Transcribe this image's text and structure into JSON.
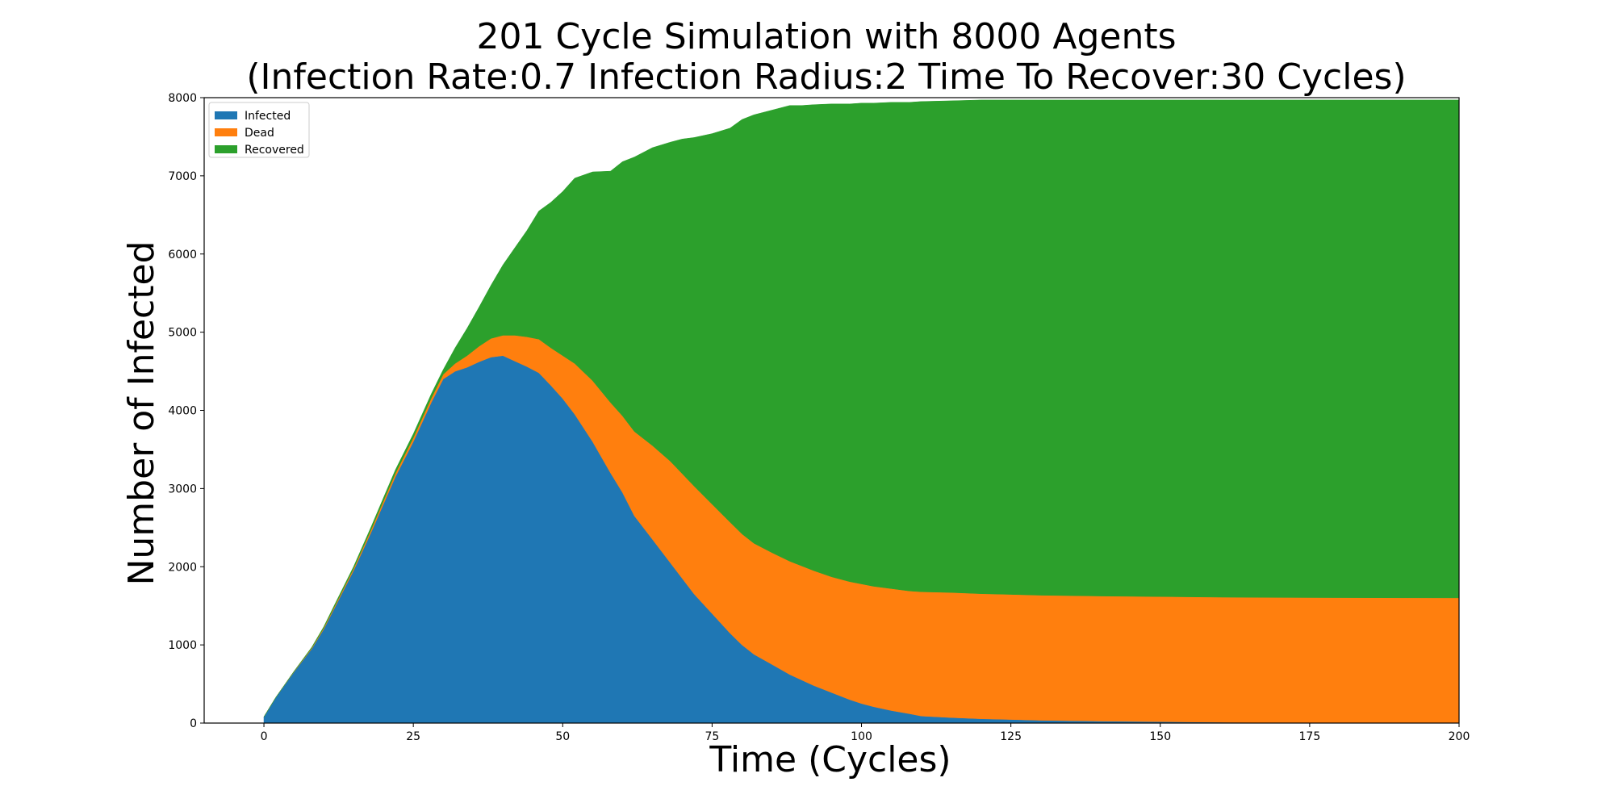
{
  "chart_data": {
    "type": "area",
    "stacked": true,
    "title_line1": "201 Cycle Simulation with 8000 Agents",
    "title_line2": "(Infection Rate:0.7  Infection Radius:2  Time To Recover:30 Cycles)",
    "xlabel": "Time (Cycles)",
    "ylabel": "Number of Infected",
    "xlim": [
      -10,
      200
    ],
    "ylim": [
      0,
      8000
    ],
    "xticks": [
      0,
      25,
      50,
      75,
      100,
      125,
      150,
      175,
      200
    ],
    "yticks": [
      0,
      1000,
      2000,
      3000,
      4000,
      5000,
      6000,
      7000,
      8000
    ],
    "grid": false,
    "legend_position": "top-left",
    "x": [
      0,
      2,
      5,
      8,
      10,
      12,
      15,
      18,
      20,
      22,
      25,
      28,
      30,
      32,
      34,
      36,
      38,
      40,
      42,
      44,
      46,
      48,
      50,
      52,
      55,
      58,
      60,
      62,
      65,
      68,
      70,
      72,
      75,
      78,
      80,
      82,
      85,
      88,
      90,
      92,
      95,
      98,
      100,
      102,
      105,
      108,
      110,
      115,
      120,
      125,
      130,
      140,
      150,
      160,
      170,
      180,
      190,
      200
    ],
    "series": [
      {
        "name": "Infected",
        "color": "#1f77b4",
        "values": [
          80,
          330,
          650,
          950,
          1200,
          1500,
          1950,
          2450,
          2800,
          3150,
          3600,
          4100,
          4400,
          4500,
          4550,
          4620,
          4680,
          4700,
          4630,
          4560,
          4480,
          4320,
          4150,
          3950,
          3600,
          3200,
          2950,
          2650,
          2350,
          2050,
          1850,
          1650,
          1400,
          1150,
          1000,
          880,
          750,
          620,
          550,
          480,
          390,
          300,
          250,
          210,
          160,
          120,
          90,
          70,
          55,
          45,
          35,
          25,
          18,
          10,
          6,
          4,
          2,
          1
        ]
      },
      {
        "name": "Dead",
        "color": "#ff7f0e",
        "values": [
          0,
          0,
          5,
          10,
          15,
          20,
          25,
          35,
          40,
          45,
          50,
          55,
          60,
          100,
          150,
          200,
          240,
          260,
          330,
          380,
          430,
          480,
          550,
          650,
          780,
          900,
          980,
          1080,
          1200,
          1300,
          1340,
          1380,
          1400,
          1420,
          1420,
          1420,
          1430,
          1450,
          1460,
          1470,
          1480,
          1510,
          1530,
          1540,
          1560,
          1570,
          1590,
          1600,
          1600,
          1600,
          1600,
          1600,
          1600,
          1600,
          1600,
          1600,
          1600,
          1600
        ]
      },
      {
        "name": "Recovered",
        "color": "#2ca02c",
        "values": [
          0,
          0,
          5,
          10,
          15,
          20,
          25,
          35,
          40,
          45,
          50,
          55,
          60,
          200,
          350,
          500,
          680,
          900,
          1120,
          1360,
          1640,
          1860,
          2100,
          2370,
          2670,
          2960,
          3250,
          3510,
          3810,
          4080,
          4280,
          4460,
          4740,
          5040,
          5300,
          5480,
          5660,
          5830,
          5890,
          5960,
          6050,
          6110,
          6150,
          6180,
          6220,
          6250,
          6270,
          6290,
          6315,
          6325,
          6335,
          6345,
          6352,
          6360,
          6364,
          6366,
          6368,
          6369
        ]
      }
    ]
  }
}
